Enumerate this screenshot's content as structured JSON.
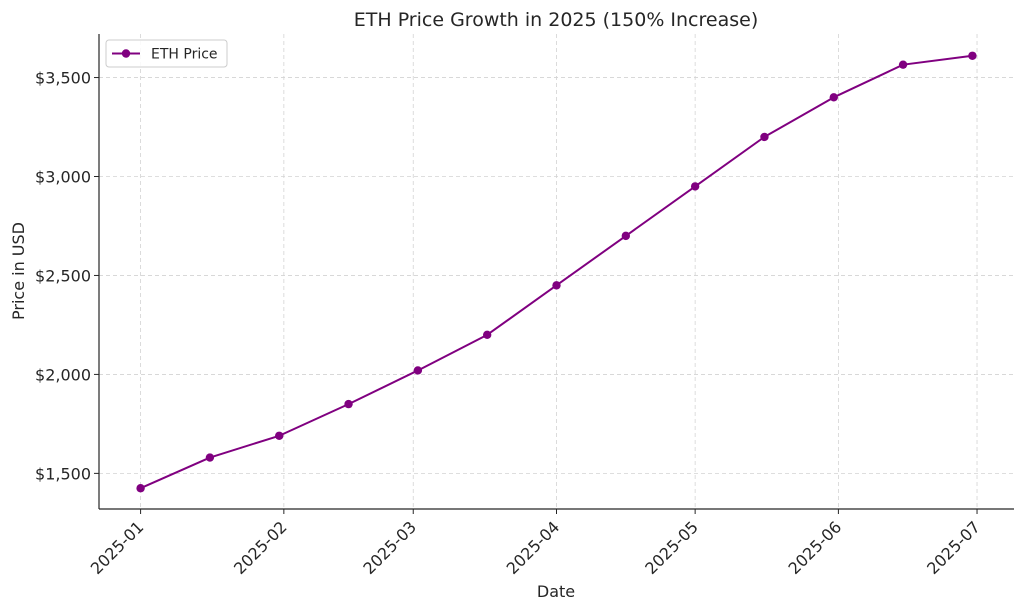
{
  "chart_data": {
    "type": "line",
    "title": "ETH Price Growth in 2025 (150% Increase)",
    "xlabel": "Date",
    "ylabel": "Price in USD",
    "x_ticks": [
      {
        "date": "2025-01-01",
        "label": "2025-01"
      },
      {
        "date": "2025-02-01",
        "label": "2025-02"
      },
      {
        "date": "2025-03-01",
        "label": "2025-03"
      },
      {
        "date": "2025-04-01",
        "label": "2025-04"
      },
      {
        "date": "2025-05-01",
        "label": "2025-05"
      },
      {
        "date": "2025-06-01",
        "label": "2025-06"
      },
      {
        "date": "2025-07-01",
        "label": "2025-07"
      }
    ],
    "y_ticks": [
      {
        "value": 1500,
        "label": "$1,500"
      },
      {
        "value": 2000,
        "label": "$2,000"
      },
      {
        "value": 2500,
        "label": "$2,500"
      },
      {
        "value": 3000,
        "label": "$3,000"
      },
      {
        "value": 3500,
        "label": "$3,500"
      }
    ],
    "xlim": [
      "2024-12-23",
      "2025-07-09"
    ],
    "ylim": [
      1320,
      3720
    ],
    "grid": true,
    "legend": {
      "placement": "top-left"
    },
    "series": [
      {
        "name": "ETH Price",
        "color": "#800080",
        "marker": "circle",
        "points": [
          {
            "x": "2025-01-01",
            "y": 1425
          },
          {
            "x": "2025-01-16",
            "y": 1580
          },
          {
            "x": "2025-01-31",
            "y": 1690
          },
          {
            "x": "2025-02-15",
            "y": 1850
          },
          {
            "x": "2025-03-02",
            "y": 2020
          },
          {
            "x": "2025-03-17",
            "y": 2200
          },
          {
            "x": "2025-04-01",
            "y": 2450
          },
          {
            "x": "2025-04-16",
            "y": 2700
          },
          {
            "x": "2025-05-01",
            "y": 2950
          },
          {
            "x": "2025-05-16",
            "y": 3200
          },
          {
            "x": "2025-05-31",
            "y": 3400
          },
          {
            "x": "2025-06-15",
            "y": 3565
          },
          {
            "x": "2025-06-30",
            "y": 3610
          }
        ]
      }
    ]
  }
}
